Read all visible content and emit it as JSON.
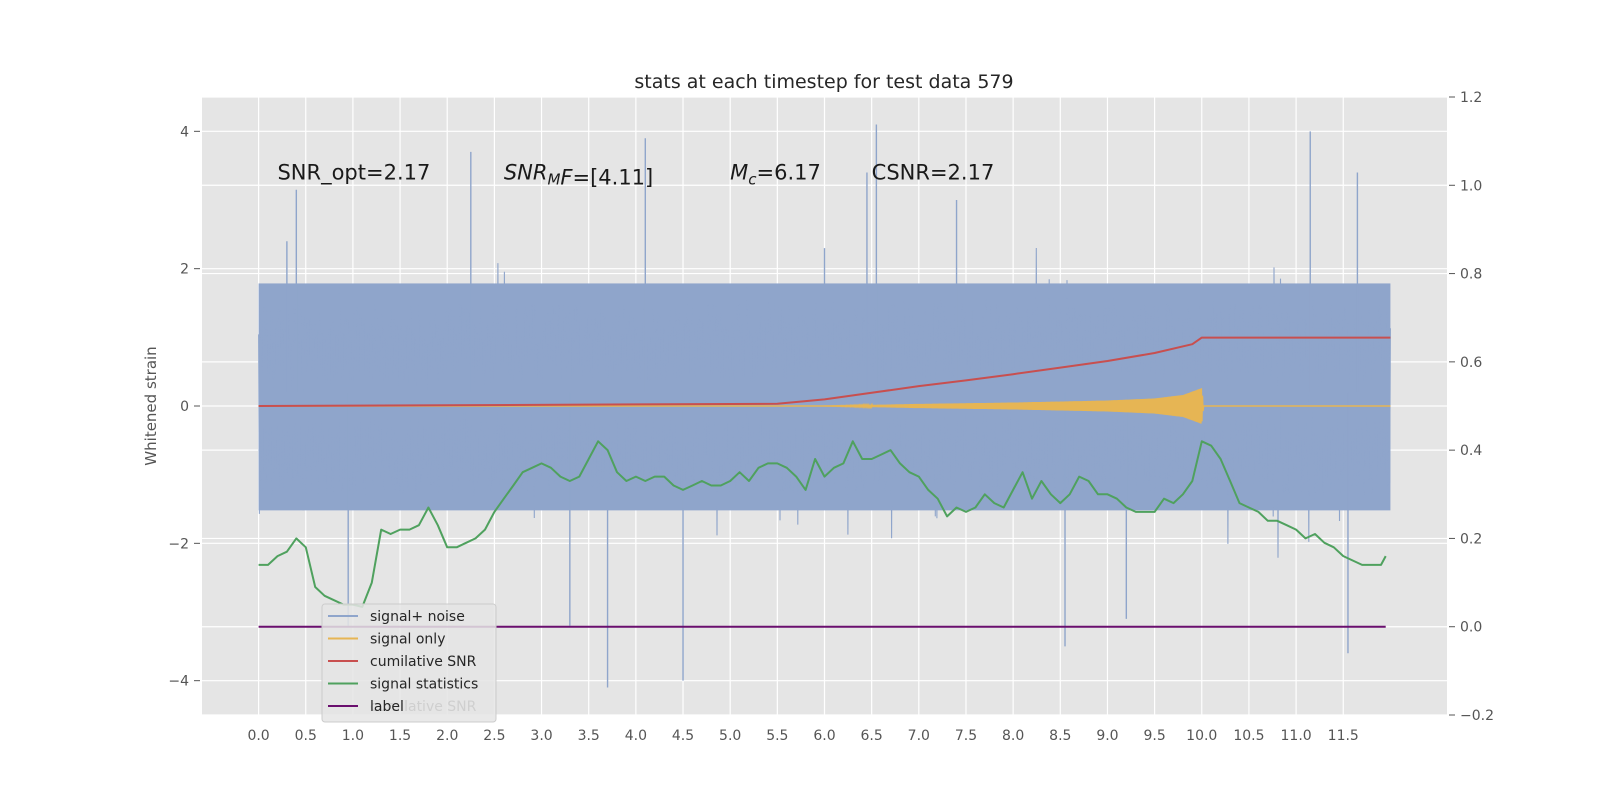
{
  "chart_data": {
    "type": "line",
    "title": "stats at each timestep for test data 579",
    "ylabel": "Whitened strain",
    "ylabel_right": "",
    "xlabel": "",
    "xlim": [
      -0.6,
      12.6
    ],
    "ylim": [
      -4.5,
      4.5
    ],
    "y2lim": [
      -0.2,
      1.2
    ],
    "x_ticks": [
      "0.0",
      "0.5",
      "1.0",
      "1.5",
      "2.0",
      "2.5",
      "3.0",
      "3.5",
      "4.0",
      "4.5",
      "5.0",
      "5.5",
      "6.0",
      "6.5",
      "7.0",
      "7.5",
      "8.0",
      "8.5",
      "9.0",
      "9.5",
      "10.0",
      "10.5",
      "11.0",
      "11.5"
    ],
    "y_ticks": [
      "4",
      "2",
      "0",
      "−2",
      "−4"
    ],
    "y2_ticks": [
      "1.2",
      "1.0",
      "0.8",
      "0.6",
      "0.4",
      "0.2",
      "0.0",
      "−0.2"
    ],
    "grid": true,
    "legend_position": "lower left",
    "annotations": [
      {
        "type": "plain",
        "text": "SNR_opt=2.17",
        "x": 0.2,
        "y": 3.3
      },
      {
        "type": "snrmf",
        "main": "SNR",
        "sub": "M",
        "tail": "F=[4.11]",
        "x": 2.6,
        "y": 3.3
      },
      {
        "type": "mc",
        "main": "M",
        "sub": "c",
        "tail": "=6.17",
        "x": 5.0,
        "y": 3.3
      },
      {
        "type": "plain",
        "text": "CSNR=2.17",
        "x": 6.5,
        "y": 3.3
      }
    ],
    "series": [
      {
        "name": "signal+ noise",
        "axis": "left",
        "color": "#8fa5cb",
        "noise_envelope": {
          "x_range": [
            0.0,
            12.0
          ],
          "typical_low": -1.9,
          "typical_high": 2.1,
          "max": 4.1,
          "min": -4.1
        }
      },
      {
        "name": "signal only",
        "axis": "left",
        "color": "#e6b554",
        "x": [
          0.0,
          6.0,
          7.0,
          8.0,
          9.0,
          9.5,
          9.8,
          10.0,
          10.02,
          12.0
        ],
        "amplitude": [
          0.0,
          0.0,
          0.03,
          0.05,
          0.08,
          0.11,
          0.16,
          0.26,
          0.0,
          0.0
        ]
      },
      {
        "name": "cumilative SNR",
        "axis": "right",
        "color": "#c84f4f",
        "x": [
          0.0,
          5.5,
          6.0,
          6.5,
          7.0,
          7.5,
          8.0,
          8.5,
          9.0,
          9.5,
          9.9,
          10.0,
          10.05,
          12.0
        ],
        "values": [
          0.5,
          0.505,
          0.515,
          0.53,
          0.545,
          0.558,
          0.572,
          0.587,
          0.602,
          0.62,
          0.64,
          0.655,
          0.655,
          0.655
        ]
      },
      {
        "name": "signal statistics",
        "axis": "right",
        "color": "#4fa15e",
        "x": [
          0.0,
          0.1,
          0.2,
          0.3,
          0.4,
          0.5,
          0.6,
          0.7,
          0.8,
          0.9,
          1.0,
          1.1,
          1.2,
          1.3,
          1.4,
          1.5,
          1.6,
          1.7,
          1.8,
          1.9,
          2.0,
          2.1,
          2.2,
          2.3,
          2.4,
          2.5,
          2.6,
          2.7,
          2.8,
          2.9,
          3.0,
          3.1,
          3.2,
          3.3,
          3.4,
          3.5,
          3.6,
          3.7,
          3.8,
          3.9,
          4.0,
          4.1,
          4.2,
          4.3,
          4.4,
          4.5,
          4.6,
          4.7,
          4.8,
          4.9,
          5.0,
          5.1,
          5.2,
          5.3,
          5.4,
          5.5,
          5.6,
          5.7,
          5.8,
          5.9,
          6.0,
          6.1,
          6.2,
          6.3,
          6.4,
          6.5,
          6.6,
          6.7,
          6.8,
          6.9,
          7.0,
          7.1,
          7.2,
          7.3,
          7.4,
          7.5,
          7.6,
          7.7,
          7.8,
          7.9,
          8.0,
          8.1,
          8.2,
          8.3,
          8.4,
          8.5,
          8.6,
          8.7,
          8.8,
          8.9,
          9.0,
          9.1,
          9.2,
          9.3,
          9.4,
          9.5,
          9.6,
          9.7,
          9.8,
          9.9,
          10.0,
          10.1,
          10.2,
          10.3,
          10.4,
          10.5,
          10.6,
          10.7,
          10.8,
          10.9,
          11.0,
          11.1,
          11.2,
          11.3,
          11.4,
          11.5,
          11.6,
          11.7,
          11.8,
          11.9,
          11.95
        ],
        "values": [
          0.14,
          0.14,
          0.16,
          0.17,
          0.2,
          0.18,
          0.09,
          0.07,
          0.06,
          0.05,
          0.05,
          0.045,
          0.1,
          0.22,
          0.21,
          0.22,
          0.22,
          0.23,
          0.27,
          0.23,
          0.18,
          0.18,
          0.19,
          0.2,
          0.22,
          0.26,
          0.29,
          0.32,
          0.35,
          0.36,
          0.37,
          0.36,
          0.34,
          0.33,
          0.34,
          0.38,
          0.42,
          0.4,
          0.35,
          0.33,
          0.34,
          0.33,
          0.34,
          0.34,
          0.32,
          0.31,
          0.32,
          0.33,
          0.32,
          0.32,
          0.33,
          0.35,
          0.33,
          0.36,
          0.37,
          0.37,
          0.36,
          0.34,
          0.31,
          0.38,
          0.34,
          0.36,
          0.37,
          0.42,
          0.38,
          0.38,
          0.39,
          0.4,
          0.37,
          0.35,
          0.34,
          0.31,
          0.29,
          0.25,
          0.27,
          0.26,
          0.27,
          0.3,
          0.28,
          0.27,
          0.31,
          0.35,
          0.29,
          0.33,
          0.3,
          0.28,
          0.3,
          0.34,
          0.33,
          0.3,
          0.3,
          0.29,
          0.27,
          0.26,
          0.26,
          0.26,
          0.29,
          0.28,
          0.3,
          0.33,
          0.42,
          0.41,
          0.38,
          0.33,
          0.28,
          0.27,
          0.26,
          0.24,
          0.24,
          0.23,
          0.22,
          0.2,
          0.21,
          0.19,
          0.18,
          0.16,
          0.15,
          0.14,
          0.14,
          0.14,
          0.16
        ]
      },
      {
        "name": "label",
        "axis": "right",
        "color": "#6a0f6e",
        "x": [
          0.0,
          11.95
        ],
        "values": [
          0.0,
          0.0
        ]
      }
    ],
    "legend_ghost_text": "cumilative SNR"
  }
}
